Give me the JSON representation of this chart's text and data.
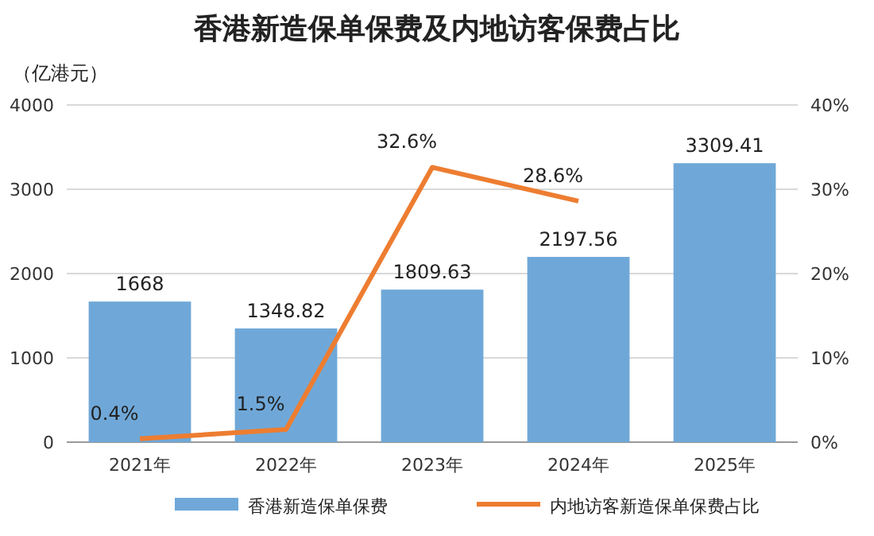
{
  "chart_data": {
    "type": "bar",
    "title": "香港新造保单保费及内地访客保费占比",
    "ylabel": "（亿港元）",
    "categories": [
      "2021年",
      "2022年",
      "2023年",
      "2024年",
      "2025年"
    ],
    "series": [
      {
        "name": "香港新造保单保费",
        "color": "#6fa8d8",
        "values": [
          1668,
          1348.82,
          1809.63,
          2197.56,
          3309.41
        ],
        "value_labels": [
          "1668",
          "1348.82",
          "1809.63",
          "2197.56",
          "3309.41"
        ]
      },
      {
        "name": "内地访客新造保单保费占比",
        "type": "line",
        "axis": "y2",
        "color": "#ed7d31",
        "values": [
          0.4,
          1.5,
          32.6,
          28.6,
          null
        ],
        "value_labels": [
          "0.4%",
          "1.5%",
          "32.6%",
          "28.6%",
          null
        ]
      }
    ],
    "ylim": [
      0,
      4000
    ],
    "yticks": [
      0,
      1000,
      2000,
      3000,
      4000
    ],
    "y2lim": [
      0,
      40
    ],
    "y2ticks": [
      {
        "value": 0,
        "label": "0%"
      },
      {
        "value": 10,
        "label": "10%"
      },
      {
        "value": 20,
        "label": "20%"
      },
      {
        "value": 30,
        "label": "30%"
      },
      {
        "value": 40,
        "label": "40%"
      }
    ],
    "grid": "y",
    "legend": "bottom",
    "marker": "none",
    "line_style": "solid"
  }
}
